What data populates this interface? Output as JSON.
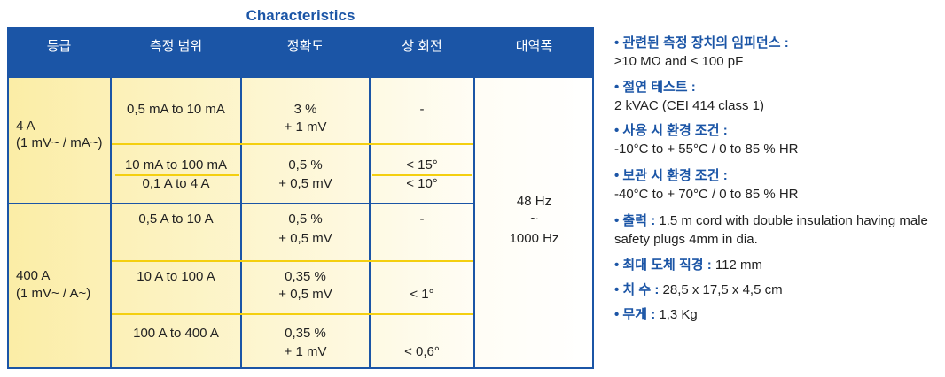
{
  "title": "Characteristics",
  "table": {
    "headers": [
      "등급",
      "측정 범위",
      "정확도",
      "상 회전",
      "대역폭"
    ],
    "groups": [
      {
        "class": [
          "4 A",
          "(1 mV~ / mA~)"
        ],
        "rows": [
          {
            "range": [
              "0,5 mA to 10 mA"
            ],
            "accuracy": [
              "3 %",
              "+ 1 mV"
            ],
            "phase": [
              "-"
            ]
          },
          {
            "range": [
              "10 mA to 100 mA",
              "0,1 A to 4 A"
            ],
            "accuracy": [
              "0,5 %",
              "+ 0,5 mV"
            ],
            "phase": [
              "< 15°",
              "< 10°"
            ]
          }
        ]
      },
      {
        "class": [
          "400 A",
          "(1 mV~ / A~)"
        ],
        "rows": [
          {
            "range": [
              "0,5 A to 10 A"
            ],
            "accuracy": [
              "0,5 %",
              "+ 0,5 mV"
            ],
            "phase": [
              "-"
            ]
          },
          {
            "range": [
              "10 A to 100 A"
            ],
            "accuracy": [
              "0,35 %",
              "+ 0,5 mV"
            ],
            "phase": [
              "< 1°"
            ]
          },
          {
            "range": [
              "100 A to 400 A"
            ],
            "accuracy": [
              "0,35 %",
              "+ 1 mV"
            ],
            "phase": [
              "< 0,6°"
            ]
          }
        ]
      }
    ],
    "bandwidth": [
      "48 Hz",
      "~",
      "1000 Hz"
    ]
  },
  "specs": [
    {
      "label": "관련된 측정 장치의 임피던스 :",
      "text": "≥10 MΩ  and ≤ 100 pF"
    },
    {
      "label": "절연 테스트 :",
      "text": "2 kVAC (CEI 414 class 1)"
    },
    {
      "label": "사용 시 환경 조건 :",
      "text": "-10°C to + 55°C / 0 to 85 % HR"
    },
    {
      "label": "보관 시 환경 조건 :",
      "text": "-40°C to + 70°C / 0 to 85 % HR"
    },
    {
      "label": "출력 :",
      "text": "1.5 m cord with double insulation having male safety plugs 4mm in dia."
    },
    {
      "label": "최대 도체 직경 :",
      "text": "112 mm"
    },
    {
      "label": "치 수 :",
      "text": "28,5 x 17,5 x 4,5 cm"
    },
    {
      "label": "무게 :",
      "text": "1,3 Kg"
    }
  ]
}
